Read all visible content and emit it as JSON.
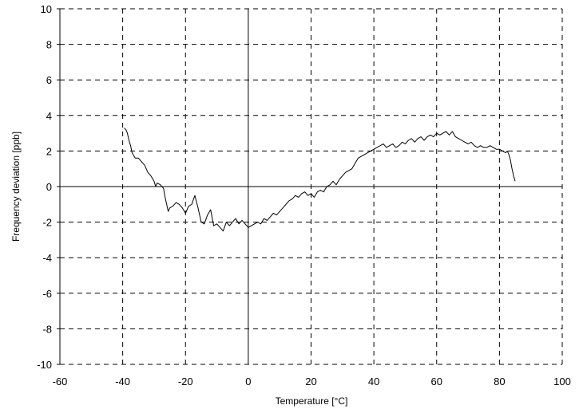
{
  "chart_data": {
    "type": "line",
    "xlabel": "Temperature [°C]",
    "ylabel": "Frequency deviation [ppb]",
    "xlim": [
      -60,
      100
    ],
    "ylim": [
      -10,
      10
    ],
    "xticks": [
      -60,
      -40,
      -20,
      0,
      20,
      40,
      60,
      80,
      100
    ],
    "yticks": [
      -10,
      -8,
      -6,
      -4,
      -2,
      0,
      2,
      4,
      6,
      8,
      10
    ],
    "grid": true,
    "grid_style": "dashed",
    "zero_lines": true,
    "colors": {
      "line": "#000000",
      "grid": "#000000",
      "background": "#ffffff"
    },
    "series": [
      {
        "x": [
          -39.5,
          -39.0,
          -38.5,
          -38.0,
          -37.5,
          -37.0,
          -36.0,
          -35.0,
          -34.0,
          -33.0,
          -32.0,
          -31.0,
          -30.0,
          -29.5,
          -29.0,
          -28.0,
          -27.0,
          -26.5,
          -26.0,
          -25.5,
          -25.0,
          -24.0,
          -23.0,
          -22.0,
          -21.0,
          -20.0,
          -19.0,
          -18.0,
          -17.0,
          -16.0,
          -15.0,
          -14.0,
          -13.0,
          -12.0,
          -11.0,
          -10.0,
          -9.0,
          -8.0,
          -7.0,
          -6.0,
          -5.0,
          -4.0,
          -3.0,
          -2.0,
          -1.0,
          0.0,
          1.0,
          2.0,
          3.0,
          4.0,
          5.0,
          6.0,
          7.0,
          8.0,
          9.0,
          10.0,
          11.0,
          12.0,
          13.0,
          14.0,
          15.0,
          16.0,
          17.0,
          18.0,
          19.0,
          20.0,
          21.0,
          22.0,
          23.0,
          24.0,
          25.0,
          26.0,
          27.0,
          28.0,
          29.0,
          30.0,
          31.0,
          32.0,
          33.0,
          34.0,
          35.0,
          36.0,
          37.0,
          38.0,
          39.0,
          40.0,
          41.0,
          42.0,
          43.0,
          44.0,
          45.0,
          46.0,
          47.0,
          48.0,
          49.0,
          50.0,
          51.0,
          52.0,
          53.0,
          54.0,
          55.0,
          56.0,
          57.0,
          58.0,
          59.0,
          60.0,
          61.0,
          62.0,
          63.0,
          64.0,
          65.0,
          66.0,
          67.0,
          68.0,
          69.0,
          70.0,
          71.0,
          72.0,
          73.0,
          74.0,
          75.0,
          76.0,
          77.0,
          78.0,
          79.0,
          80.0,
          81.0,
          82.0,
          82.5,
          83.0,
          83.5,
          84.0,
          84.5,
          85.0
        ],
        "y": [
          3.3,
          3.2,
          3.0,
          2.6,
          2.3,
          1.9,
          1.6,
          1.6,
          1.4,
          1.2,
          0.8,
          0.6,
          0.3,
          0.0,
          0.2,
          0.1,
          -0.1,
          -0.6,
          -1.0,
          -1.4,
          -1.2,
          -1.1,
          -0.9,
          -1.0,
          -1.2,
          -1.5,
          -1.1,
          -1.0,
          -0.5,
          -1.2,
          -2.0,
          -2.1,
          -1.6,
          -1.3,
          -2.2,
          -2.1,
          -2.3,
          -2.5,
          -2.0,
          -2.2,
          -2.0,
          -1.8,
          -2.1,
          -1.9,
          -2.1,
          -2.3,
          -2.2,
          -2.1,
          -2.0,
          -2.1,
          -1.8,
          -1.9,
          -1.7,
          -1.5,
          -1.6,
          -1.4,
          -1.2,
          -1.0,
          -0.8,
          -0.7,
          -0.5,
          -0.6,
          -0.4,
          -0.3,
          -0.5,
          -0.4,
          -0.6,
          -0.3,
          -0.2,
          -0.3,
          0.0,
          0.1,
          0.3,
          0.1,
          0.4,
          0.6,
          0.8,
          0.9,
          1.0,
          1.3,
          1.6,
          1.7,
          1.8,
          1.9,
          2.0,
          2.1,
          2.2,
          2.3,
          2.4,
          2.2,
          2.3,
          2.4,
          2.2,
          2.3,
          2.5,
          2.4,
          2.6,
          2.7,
          2.5,
          2.7,
          2.8,
          2.6,
          2.8,
          2.9,
          2.8,
          3.0,
          2.9,
          3.0,
          3.1,
          2.9,
          3.1,
          2.8,
          2.7,
          2.6,
          2.5,
          2.4,
          2.5,
          2.3,
          2.2,
          2.3,
          2.2,
          2.2,
          2.3,
          2.2,
          2.1,
          2.1,
          2.0,
          1.9,
          2.0,
          1.8,
          1.5,
          1.0,
          0.6,
          0.3
        ]
      }
    ]
  }
}
